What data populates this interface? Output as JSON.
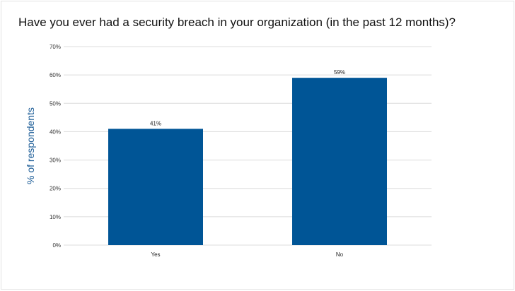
{
  "chart_data": {
    "type": "bar",
    "title": "Have you ever had a security breach in your organization (in the past 12 months)?",
    "xlabel": "",
    "ylabel": "% of respondents",
    "categories": [
      "Yes",
      "No"
    ],
    "values": [
      41,
      59
    ],
    "data_labels": [
      "41%",
      "59%"
    ],
    "y_ticks": [
      0,
      10,
      20,
      30,
      40,
      50,
      60,
      70
    ],
    "y_tick_labels": [
      "0%",
      "10%",
      "20%",
      "30%",
      "40%",
      "50%",
      "60%",
      "70%"
    ],
    "ylim": [
      0,
      70
    ],
    "grid": true,
    "legend": "none",
    "bar_color": "#005596",
    "grid_color": "#dcdcdc",
    "ylabel_color": "#1d5d97"
  }
}
